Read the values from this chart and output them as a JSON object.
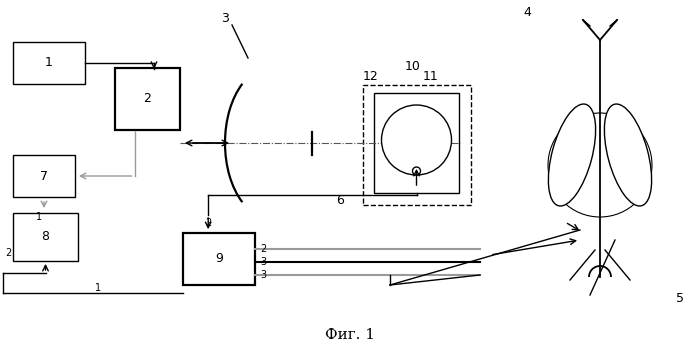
{
  "bg_color": "#ffffff",
  "line_color": "#000000",
  "gray_line_color": "#999999",
  "title": "Фиг. 1",
  "title_fontsize": 11
}
